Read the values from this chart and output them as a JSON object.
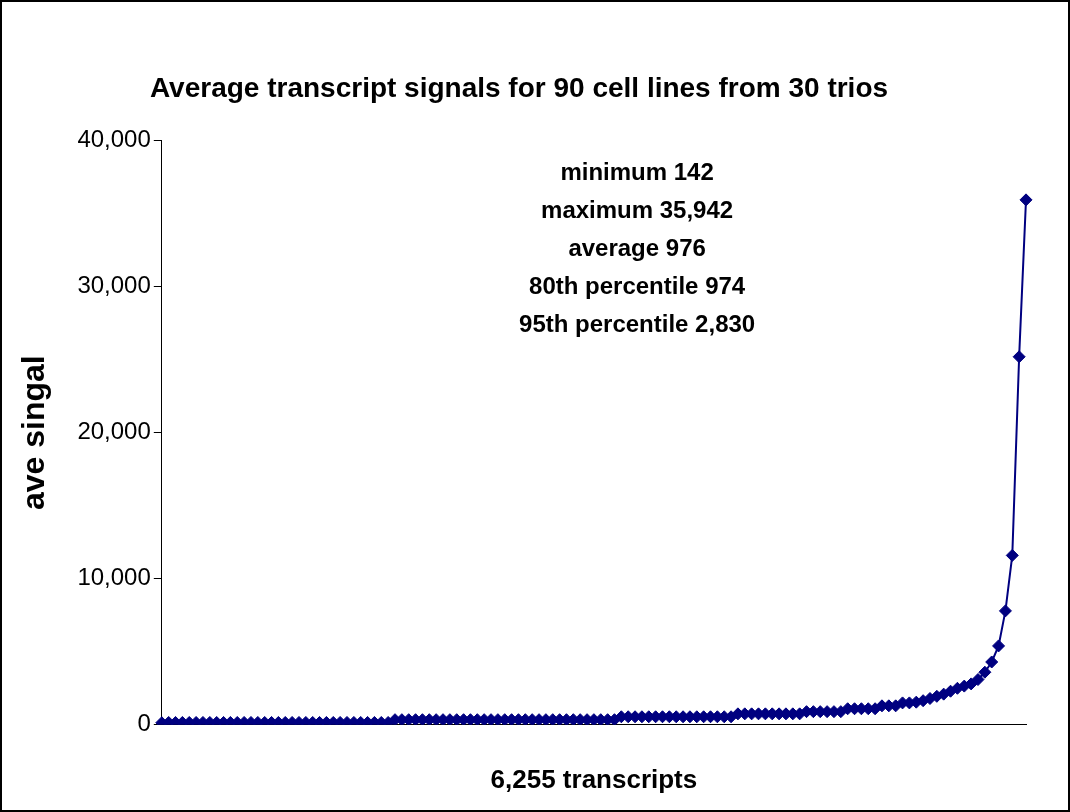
{
  "chart_data": {
    "type": "line",
    "title": "Average transcript signals for 90 cell lines from 30 trios",
    "xlabel": "6,255 transcripts",
    "ylabel": "ave singal",
    "annotations": [
      "minimum 142",
      "maximum 35,942",
      "average 976",
      "80th percentile 974",
      "95th percentile 2,830"
    ],
    "categories": [
      null,
      null,
      null,
      null,
      null,
      null,
      null,
      null,
      null,
      null,
      null,
      null,
      null,
      null,
      null,
      null,
      null,
      null,
      null,
      null,
      null,
      null,
      null,
      null,
      null,
      null,
      null,
      null,
      null,
      null,
      null,
      null,
      null,
      null,
      null,
      null,
      null,
      null,
      null,
      null,
      null,
      null,
      null,
      null,
      null,
      null,
      null,
      null,
      null,
      null,
      null,
      null,
      null,
      null,
      null,
      null,
      null,
      null,
      null,
      null,
      null,
      null,
      null,
      null,
      null,
      null,
      null,
      null,
      null,
      null,
      null,
      null,
      null,
      null,
      null,
      null,
      null,
      null,
      null,
      null,
      null,
      null,
      null,
      null,
      null,
      null,
      null,
      null,
      null,
      null,
      null,
      null,
      null,
      null,
      null,
      null,
      null,
      null,
      null,
      null,
      null,
      null,
      null,
      null,
      null,
      null,
      null,
      null,
      null,
      null,
      null,
      null,
      null,
      null,
      null,
      null,
      null,
      null,
      null,
      null,
      null,
      null,
      null,
      null,
      null,
      null,
      null
    ],
    "ylim": [
      0,
      40000
    ],
    "yticks": [
      {
        "value": 0,
        "label": "0"
      },
      {
        "value": 10000,
        "label": "10,000"
      },
      {
        "value": 20000,
        "label": "20,000"
      },
      {
        "value": 30000,
        "label": "30,000"
      },
      {
        "value": 40000,
        "label": "40,000"
      }
    ],
    "tick_labels": "y",
    "marker": "diamond",
    "series": [
      {
        "color": "#000080",
        "values": [
          142,
          160,
          160,
          160,
          160,
          160,
          160,
          160,
          160,
          160,
          160,
          160,
          160,
          160,
          160,
          160,
          160,
          160,
          160,
          160,
          160,
          160,
          160,
          160,
          160,
          160,
          160,
          160,
          160,
          160,
          160,
          160,
          160,
          160,
          350,
          350,
          350,
          350,
          350,
          350,
          350,
          350,
          350,
          350,
          350,
          350,
          350,
          350,
          350,
          350,
          350,
          350,
          350,
          350,
          350,
          350,
          350,
          350,
          350,
          350,
          350,
          350,
          350,
          350,
          350,
          350,
          350,
          550,
          550,
          550,
          550,
          550,
          550,
          550,
          550,
          550,
          550,
          550,
          550,
          550,
          550,
          550,
          550,
          550,
          750,
          750,
          750,
          750,
          750,
          750,
          750,
          750,
          750,
          750,
          900,
          900,
          900,
          900,
          900,
          900,
          1100,
          1100,
          1100,
          1100,
          1100,
          1300,
          1300,
          1300,
          1500,
          1500,
          1550,
          1650,
          1800,
          1950,
          2100,
          2300,
          2500,
          2650,
          2800,
          3100,
          3600,
          4300,
          5400,
          7800,
          11600,
          25200,
          35942
        ]
      }
    ]
  }
}
